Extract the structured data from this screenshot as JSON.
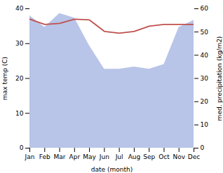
{
  "chart_data": {
    "type": "line",
    "categories": [
      "Jan",
      "Feb",
      "Mar",
      "Apr",
      "May",
      "Jun",
      "Jul",
      "Aug",
      "Sep",
      "Oct",
      "Nov",
      "Dec"
    ],
    "series": [
      {
        "type": "area",
        "axis": "y2",
        "color": "#b8c4e8",
        "values": [
          57,
          52,
          58,
          56,
          44,
          34,
          34,
          35,
          34,
          36,
          52,
          55
        ]
      },
      {
        "type": "line",
        "color": "#c0504d",
        "values": [
          37.0,
          35.5,
          35.8,
          37.0,
          36.8,
          33.5,
          33.0,
          33.5,
          35.0,
          35.5,
          35.5,
          35.5
        ]
      }
    ],
    "xlabel": "date (month)",
    "ylabel": "max temp (C)",
    "y2label": "med. precipitation (kg/m2)",
    "ylim": [
      0,
      40
    ],
    "yticks": [
      0,
      10,
      20,
      30,
      40
    ],
    "y2lim": [
      0,
      60
    ],
    "y2ticks": [
      0,
      10,
      20,
      30,
      40,
      50,
      60
    ],
    "grid": false
  }
}
